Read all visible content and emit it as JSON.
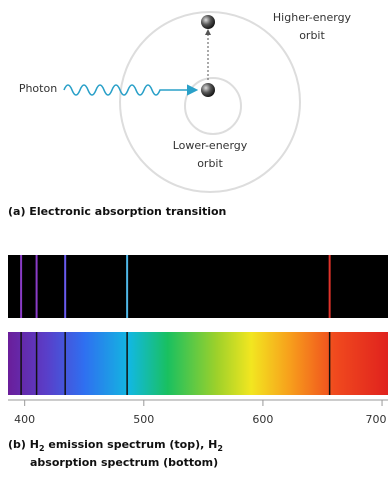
{
  "diagram": {
    "labels": {
      "higher": [
        "Higher-energy",
        "orbit"
      ],
      "photon": "Photon",
      "lower": [
        "Lower-energy",
        "orbit"
      ]
    },
    "caption_a": "(a) Electronic absorption transition"
  },
  "spectrum": {
    "xlim": [
      386,
      705
    ],
    "xticks": [
      400,
      500,
      600,
      700
    ],
    "lines": [
      {
        "wavelength": 397,
        "color": "#8a3cc8"
      },
      {
        "wavelength": 410,
        "color": "#8a3cc8"
      },
      {
        "wavelength": 434,
        "color": "#6a5cf0"
      },
      {
        "wavelength": 486,
        "color": "#4fb8e8"
      },
      {
        "wavelength": 656,
        "color": "#e0332a"
      }
    ],
    "caption_b": {
      "line1": [
        "(b) H",
        "2",
        " emission spectrum (top), H",
        "2"
      ],
      "line2": "absorption spectrum (bottom)"
    }
  }
}
